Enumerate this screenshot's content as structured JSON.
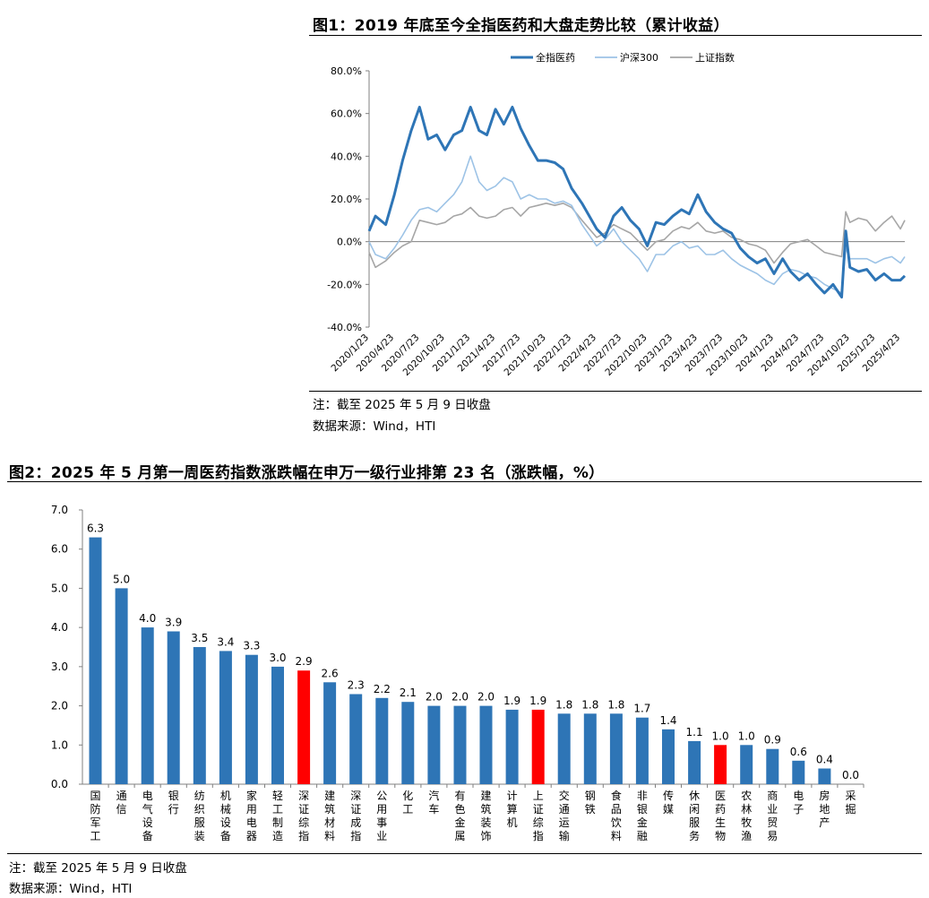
{
  "fig1": {
    "title": "图1：2019 年底至今全指医药和大盘走势比较（累计收益）",
    "note": "注：截至 2025 年 5 月 9 日收盘",
    "source": "数据来源：Wind，HTI",
    "chart_data": {
      "type": "line",
      "title": "图1：2019 年底至今全指医药和大盘走势比较（累计收益）",
      "x_tick_labels": [
        "2020/1/23",
        "2020/4/23",
        "2020/7/23",
        "2020/10/23",
        "2021/1/23",
        "2021/4/23",
        "2021/7/23",
        "2021/10/23",
        "2022/1/23",
        "2022/4/23",
        "2022/7/23",
        "2022/10/23",
        "2023/1/23",
        "2023/4/23",
        "2023/7/23",
        "2023/10/23",
        "2024/1/23",
        "2024/4/23",
        "2024/7/23",
        "2024/10/23",
        "2025/1/23",
        "2025/4/23"
      ],
      "y_tick_labels": [
        "80.0%",
        "60.0%",
        "40.0%",
        "20.0%",
        "0.0%",
        "-20.0%",
        "-40.0%"
      ],
      "ylim": [
        -40,
        80
      ],
      "y_unit": "%",
      "legend_position": "top",
      "series": [
        {
          "name": "全指医药",
          "color": "#2e75b6",
          "x": [
            "2020/1/23",
            "2020/2/15",
            "2020/3/23",
            "2020/4/23",
            "2020/5/23",
            "2020/6/23",
            "2020/7/23",
            "2020/8/23",
            "2020/9/23",
            "2020/10/23",
            "2020/11/23",
            "2020/12/23",
            "2021/1/23",
            "2021/2/23",
            "2021/3/23",
            "2021/4/23",
            "2021/5/23",
            "2021/6/23",
            "2021/7/23",
            "2021/8/23",
            "2021/9/23",
            "2021/10/23",
            "2021/11/23",
            "2021/12/23",
            "2022/1/23",
            "2022/3/1",
            "2022/4/23",
            "2022/5/23",
            "2022/6/23",
            "2022/7/23",
            "2022/8/23",
            "2022/9/23",
            "2022/10/23",
            "2022/11/23",
            "2022/12/23",
            "2023/1/23",
            "2023/2/23",
            "2023/3/23",
            "2023/4/23",
            "2023/5/23",
            "2023/6/23",
            "2023/7/23",
            "2023/8/23",
            "2023/9/23",
            "2023/10/23",
            "2023/11/23",
            "2023/12/23",
            "2024/1/23",
            "2024/2/23",
            "2024/3/23",
            "2024/4/23",
            "2024/5/23",
            "2024/6/23",
            "2024/7/23",
            "2024/8/23",
            "2024/9/23",
            "2024/10/8",
            "2024/10/23",
            "2024/11/23",
            "2024/12/23",
            "2025/1/23",
            "2025/2/23",
            "2025/3/23",
            "2025/4/23",
            "2025/5/9"
          ],
          "y": [
            5,
            12,
            8,
            22,
            38,
            52,
            63,
            48,
            50,
            43,
            50,
            52,
            63,
            52,
            50,
            62,
            55,
            63,
            53,
            45,
            38,
            38,
            37,
            34,
            25,
            18,
            6,
            2,
            12,
            16,
            10,
            6,
            -2,
            9,
            8,
            12,
            15,
            13,
            22,
            14,
            9,
            6,
            4,
            -3,
            -7,
            -10,
            -8,
            -15,
            -8,
            -14,
            -18,
            -15,
            -20,
            -24,
            -20,
            -26,
            5,
            -12,
            -14,
            -13,
            -18,
            -15,
            -18,
            -18,
            -16
          ]
        },
        {
          "name": "沪深300",
          "color": "#9dc3e6",
          "x": [
            "2020/1/23",
            "2020/2/15",
            "2020/3/23",
            "2020/4/23",
            "2020/5/23",
            "2020/6/23",
            "2020/7/23",
            "2020/8/23",
            "2020/9/23",
            "2020/10/23",
            "2020/11/23",
            "2020/12/23",
            "2021/1/23",
            "2021/2/23",
            "2021/3/23",
            "2021/4/23",
            "2021/5/23",
            "2021/6/23",
            "2021/7/23",
            "2021/8/23",
            "2021/9/23",
            "2021/10/23",
            "2021/11/23",
            "2021/12/23",
            "2022/1/23",
            "2022/3/1",
            "2022/4/23",
            "2022/5/23",
            "2022/6/23",
            "2022/7/23",
            "2022/8/23",
            "2022/9/23",
            "2022/10/23",
            "2022/11/23",
            "2022/12/23",
            "2023/1/23",
            "2023/2/23",
            "2023/3/23",
            "2023/4/23",
            "2023/5/23",
            "2023/6/23",
            "2023/7/23",
            "2023/8/23",
            "2023/9/23",
            "2023/10/23",
            "2023/11/23",
            "2023/12/23",
            "2024/1/23",
            "2024/2/23",
            "2024/3/23",
            "2024/4/23",
            "2024/5/23",
            "2024/6/23",
            "2024/7/23",
            "2024/8/23",
            "2024/9/23",
            "2024/10/8",
            "2024/10/23",
            "2024/11/23",
            "2024/12/23",
            "2025/1/23",
            "2025/2/23",
            "2025/3/23",
            "2025/4/23",
            "2025/5/9"
          ],
          "y": [
            0,
            -6,
            -8,
            -3,
            3,
            10,
            15,
            16,
            14,
            18,
            22,
            28,
            40,
            28,
            24,
            26,
            30,
            28,
            20,
            22,
            20,
            20,
            18,
            19,
            17,
            8,
            -2,
            1,
            6,
            0,
            -4,
            -8,
            -14,
            -6,
            -6,
            -2,
            0,
            -3,
            -2,
            -6,
            -6,
            -4,
            -8,
            -11,
            -13,
            -15,
            -18,
            -20,
            -15,
            -13,
            -14,
            -16,
            -17,
            -20,
            -22,
            -24,
            -3,
            -8,
            -8,
            -8,
            -10,
            -8,
            -7,
            -10,
            -7
          ]
        },
        {
          "name": "上证指数",
          "color": "#a6a6a6",
          "x": [
            "2020/1/23",
            "2020/2/15",
            "2020/3/23",
            "2020/4/23",
            "2020/5/23",
            "2020/6/23",
            "2020/7/23",
            "2020/8/23",
            "2020/9/23",
            "2020/10/23",
            "2020/11/23",
            "2020/12/23",
            "2021/1/23",
            "2021/2/23",
            "2021/3/23",
            "2021/4/23",
            "2021/5/23",
            "2021/6/23",
            "2021/7/23",
            "2021/8/23",
            "2021/9/23",
            "2021/10/23",
            "2021/11/23",
            "2021/12/23",
            "2022/1/23",
            "2022/3/1",
            "2022/4/23",
            "2022/5/23",
            "2022/6/23",
            "2022/7/23",
            "2022/8/23",
            "2022/9/23",
            "2022/10/23",
            "2022/11/23",
            "2022/12/23",
            "2023/1/23",
            "2023/2/23",
            "2023/3/23",
            "2023/4/23",
            "2023/5/23",
            "2023/6/23",
            "2023/7/23",
            "2023/8/23",
            "2023/9/23",
            "2023/10/23",
            "2023/11/23",
            "2023/12/23",
            "2024/1/23",
            "2024/2/23",
            "2024/3/23",
            "2024/4/23",
            "2024/5/23",
            "2024/6/23",
            "2024/7/23",
            "2024/8/23",
            "2024/9/23",
            "2024/10/8",
            "2024/10/23",
            "2024/11/23",
            "2024/12/23",
            "2025/1/23",
            "2025/2/23",
            "2025/3/23",
            "2025/4/23",
            "2025/5/9"
          ],
          "y": [
            -5,
            -12,
            -9,
            -5,
            -2,
            0,
            10,
            9,
            8,
            9,
            12,
            13,
            16,
            12,
            11,
            12,
            15,
            16,
            12,
            16,
            17,
            18,
            17,
            18,
            16,
            10,
            2,
            4,
            8,
            6,
            4,
            0,
            -4,
            0,
            1,
            5,
            7,
            6,
            9,
            5,
            4,
            5,
            2,
            1,
            -1,
            -2,
            -4,
            -10,
            -5,
            -1,
            0,
            1,
            -2,
            -5,
            -6,
            -7,
            14,
            9,
            11,
            10,
            5,
            9,
            12,
            6,
            10
          ]
        }
      ]
    }
  },
  "fig2": {
    "title": "图2：2025 年 5 月第一周医药指数涨跌幅在申万一级行业排第 23 名（涨跌幅，%）",
    "note": "注：截至 2025 年 5 月 9 日收盘",
    "source": "数据来源：Wind，HTI",
    "chart_data": {
      "type": "bar",
      "title": "图2：2025 年 5 月第一周医药指数涨跌幅在申万一级行业排第 23 名（涨跌幅，%）",
      "y_unit": "%",
      "ylim": [
        0,
        7
      ],
      "y_tick_labels": [
        "7.0",
        "6.0",
        "5.0",
        "4.0",
        "3.0",
        "2.0",
        "1.0",
        "0.0"
      ],
      "grid": false,
      "categories": [
        "国防军工",
        "通信",
        "电气设备",
        "银行",
        "纺织服装",
        "机械设备",
        "家用电器",
        "轻工制造",
        "深证综指",
        "建筑材料",
        "深证成指",
        "公用事业",
        "化工",
        "汽车",
        "有色金属",
        "建筑装饰",
        "计算机",
        "上证综指",
        "交通运输",
        "钢铁",
        "食品饮料",
        "非银金融",
        "传媒",
        "休闲服务",
        "医药生物",
        "农林牧渔",
        "商业贸易",
        "电子",
        "房地产",
        "采掘"
      ],
      "values": [
        6.3,
        5.0,
        4.0,
        3.9,
        3.5,
        3.4,
        3.3,
        3.0,
        2.9,
        2.6,
        2.3,
        2.2,
        2.1,
        2.0,
        2.0,
        2.0,
        1.9,
        1.9,
        1.8,
        1.8,
        1.8,
        1.7,
        1.4,
        1.1,
        1.0,
        1.0,
        0.9,
        0.6,
        0.4,
        0.0
      ],
      "value_labels": [
        "6.3",
        "5.0",
        "4.0",
        "3.9",
        "3.5",
        "3.4",
        "3.3",
        "3.0",
        "2.9",
        "2.6",
        "2.3",
        "2.2",
        "2.1",
        "2.0",
        "2.0",
        "2.0",
        "1.9",
        "1.9",
        "1.8",
        "1.8",
        "1.8",
        "1.7",
        "1.4",
        "1.1",
        "1.0",
        "1.0",
        "0.9",
        "0.6",
        "0.4",
        "0.0"
      ],
      "colors": {
        "default": "#2e75b6",
        "highlight": "#ff0000"
      },
      "highlighted_categories": [
        "深证综指",
        "上证综指",
        "医药生物"
      ]
    }
  }
}
